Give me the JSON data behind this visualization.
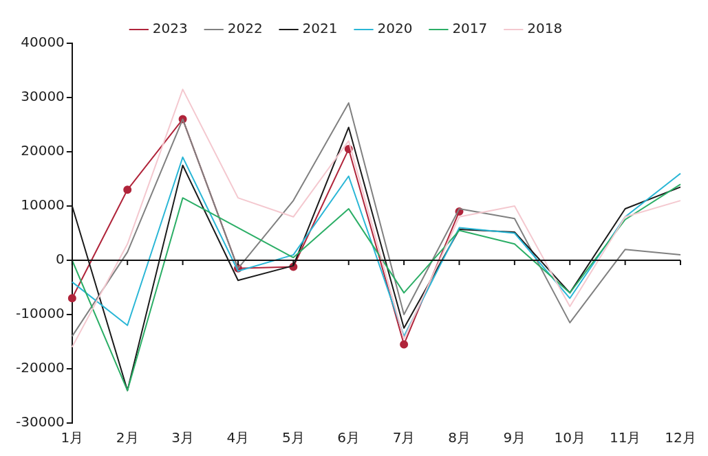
{
  "chart_data": {
    "type": "line",
    "categories": [
      "1月",
      "2月",
      "3月",
      "4月",
      "5月",
      "6月",
      "7月",
      "8月",
      "9月",
      "10月",
      "11月",
      "12月"
    ],
    "series": [
      {
        "name": "2023",
        "color": "#b0243a",
        "marker": "circle",
        "values": [
          -7000,
          13000,
          26000,
          -1500,
          -1200,
          20500,
          -15500,
          9000,
          null,
          null,
          null,
          null
        ]
      },
      {
        "name": "2022",
        "color": "#808080",
        "values": [
          -14000,
          1500,
          26000,
          -1500,
          11000,
          29000,
          -10000,
          9500,
          7700,
          -11500,
          2000,
          1000
        ]
      },
      {
        "name": "2021",
        "color": "#1a1a1a",
        "values": [
          10000,
          -24000,
          17500,
          -3700,
          -1000,
          24500,
          -12500,
          5700,
          5200,
          -6000,
          9500,
          13500
        ]
      },
      {
        "name": "2020",
        "color": "#29b6d6",
        "values": [
          -4000,
          -12000,
          19000,
          -2000,
          1000,
          15500,
          -14000,
          6000,
          5000,
          -7000,
          8000,
          16000
        ]
      },
      {
        "name": "2017",
        "color": "#2bae66",
        "values": [
          0,
          -24000,
          11500,
          6000,
          500,
          9500,
          -6000,
          5500,
          3000,
          -6000,
          7500,
          14000
        ]
      },
      {
        "name": "2018",
        "color": "#f4c8cf",
        "values": [
          -16000,
          3000,
          31500,
          11500,
          8000,
          22000,
          -14500,
          8000,
          10000,
          -8500,
          8000,
          11000
        ]
      }
    ],
    "ylim": [
      -30000,
      40000
    ],
    "yticks": [
      -30000,
      -20000,
      -10000,
      0,
      10000,
      20000,
      30000,
      40000
    ],
    "ref_lines": [
      {
        "axis": "y",
        "value": 0
      }
    ],
    "grid": false,
    "legend": "top",
    "marker": "none",
    "line_style": "solid"
  }
}
